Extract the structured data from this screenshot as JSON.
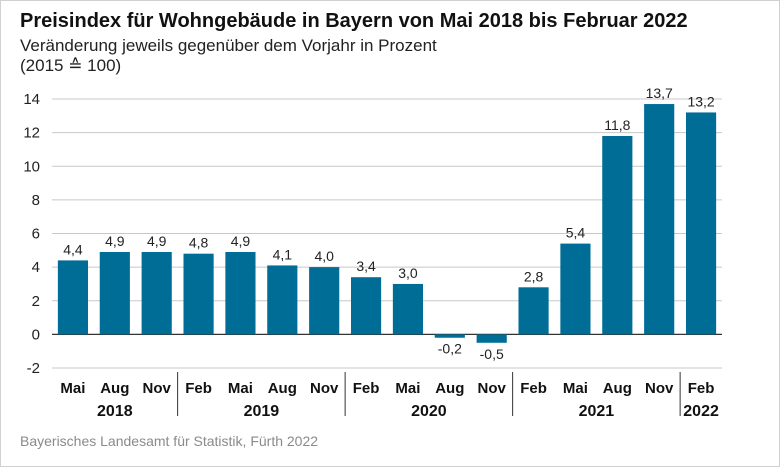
{
  "title": "Preisindex für Wohngebäude in Bayern von Mai 2018 bis Februar 2022",
  "subtitle": "Veränderung jeweils gegenüber dem Vorjahr in Prozent",
  "subtitle2": "(2015 ≙ 100)",
  "source": "Bayerisches Landesamt für Statistik, Fürth 2022",
  "colors": {
    "bar": "#006d96",
    "grid": "#c8c8c8",
    "axis": "#333333"
  },
  "chart_data": {
    "type": "bar",
    "title": "Preisindex für Wohngebäude in Bayern von Mai 2018 bis Februar 2022",
    "categories": [
      "Mai",
      "Aug",
      "Nov",
      "Feb",
      "Mai",
      "Aug",
      "Nov",
      "Feb",
      "Mai",
      "Aug",
      "Nov",
      "Feb",
      "Mai",
      "Aug",
      "Nov",
      "Feb"
    ],
    "year_groups": [
      {
        "label": "2018",
        "count": 3
      },
      {
        "label": "2019",
        "count": 4
      },
      {
        "label": "2020",
        "count": 4
      },
      {
        "label": "2021",
        "count": 4
      },
      {
        "label": "2022",
        "count": 1
      }
    ],
    "values": [
      4.4,
      4.9,
      4.9,
      4.8,
      4.9,
      4.1,
      4.0,
      3.4,
      3.0,
      -0.2,
      -0.5,
      2.8,
      5.4,
      11.8,
      13.7,
      13.2
    ],
    "value_labels": [
      "4,4",
      "4,9",
      "4,9",
      "4,8",
      "4,9",
      "4,1",
      "4,0",
      "3,4",
      "3,0",
      "-0,2",
      "-0,5",
      "2,8",
      "5,4",
      "11,8",
      "13,7",
      "13,2"
    ],
    "yticks": [
      14,
      12,
      10,
      8,
      6,
      4,
      2,
      0,
      -2
    ],
    "ylim": [
      -2,
      14
    ],
    "grid": true
  }
}
